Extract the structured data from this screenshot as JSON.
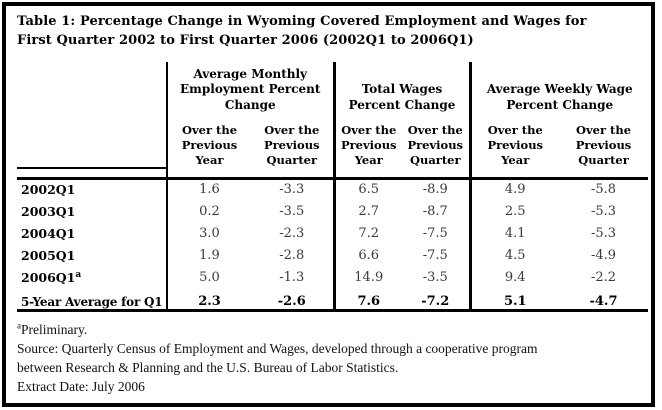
{
  "title": "Table 1: Percentage Change in Wyoming Covered Employment and Wages for First Quarter 2002 to First Quarter 2006 (2002Q1 to 2006Q1)",
  "table": {
    "column_groups": [
      {
        "label": "Average Monthly Employment Percent Change",
        "sub_columns": [
          "Over the Previous Year",
          "Over the Previous Quarter"
        ]
      },
      {
        "label": "Total Wages Percent Change",
        "sub_columns": [
          "Over the Previous Year",
          "Over the Previous Quarter"
        ]
      },
      {
        "label": "Average Weekly Wage Percent Change",
        "sub_columns": [
          "Over the Previous Year",
          "Over the Previous Quarter"
        ]
      }
    ],
    "rows": [
      {
        "label": "2002Q1",
        "values": [
          "1.6",
          "-3.3",
          "6.5",
          "-8.9",
          "4.9",
          "-5.8"
        ]
      },
      {
        "label": "2003Q1",
        "values": [
          "0.2",
          "-3.5",
          "2.7",
          "-8.7",
          "2.5",
          "-5.3"
        ]
      },
      {
        "label": "2004Q1",
        "values": [
          "3.0",
          "-2.3",
          "7.2",
          "-7.5",
          "4.1",
          "-5.3"
        ]
      },
      {
        "label": "2005Q1",
        "values": [
          "1.9",
          "-2.8",
          "6.6",
          "-7.5",
          "4.5",
          "-4.9"
        ]
      },
      {
        "label": "2006Q1",
        "footnote_marker": "a",
        "values": [
          "5.0",
          "-1.3",
          "14.9",
          "-3.5",
          "9.4",
          "-2.2"
        ]
      }
    ],
    "summary_row": {
      "label": "5-Year Average for Q1",
      "values": [
        "2.3",
        "-2.6",
        "7.6",
        "-7.2",
        "5.1",
        "-4.7"
      ]
    }
  },
  "footnotes": {
    "marker": "a",
    "preliminary": "Preliminary.",
    "source": "Source: Quarterly Census of Employment and Wages, developed through a cooperative program between Research & Planning and the U.S. Bureau of Labor Statistics.",
    "extract_date": "Extract Date: July 2006"
  },
  "colors": {
    "border": "#000000",
    "background": "#ffffff",
    "text": "#000000",
    "value_text": "#3a3a3a"
  }
}
